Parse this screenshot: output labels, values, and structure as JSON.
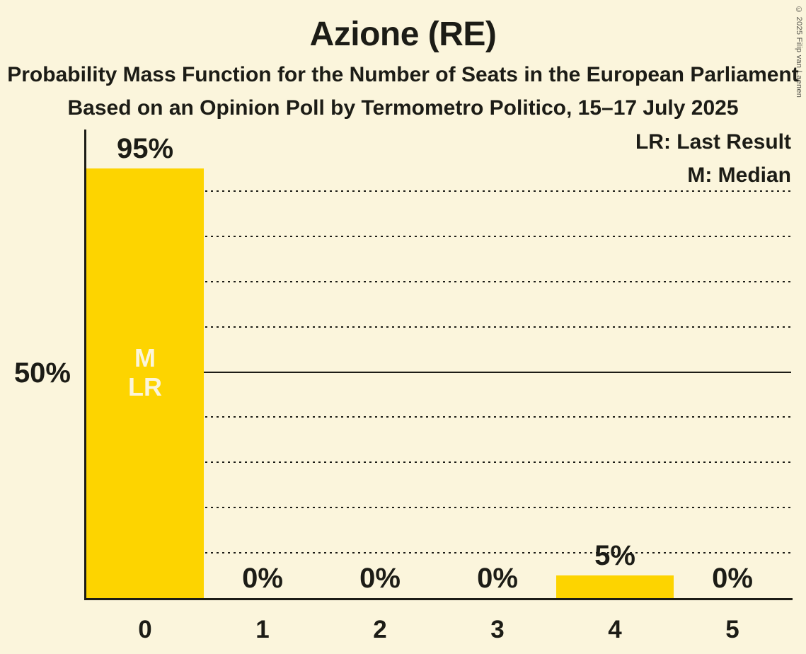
{
  "title": "Azione (RE)",
  "subtitles": [
    "Probability Mass Function for the Number of Seats in the European Parliament",
    "Based on an Opinion Poll by Termometro Politico, 15–17 July 2025"
  ],
  "copyright": "© 2025 Filip van Laenen",
  "legend": {
    "lr": "LR: Last Result",
    "m": "M: Median"
  },
  "colors": {
    "background": "#FBF5DC",
    "bar": "#FDD400",
    "text": "#1C1C16",
    "bar_annotation_text": "#FBF5DC"
  },
  "chart_data": {
    "type": "bar",
    "title": "Azione (RE)",
    "categories": [
      "0",
      "1",
      "2",
      "3",
      "4",
      "5"
    ],
    "values": [
      95,
      0,
      0,
      0,
      5,
      0
    ],
    "value_labels": [
      "95%",
      "0%",
      "0%",
      "0%",
      "5%",
      "0%"
    ],
    "xlabel": "",
    "ylabel": "",
    "ylim": [
      0,
      100
    ],
    "y_tick_labels": [
      {
        "pct": 50,
        "label": "50%"
      }
    ],
    "y_gridlines_pct": [
      10,
      20,
      30,
      40,
      50,
      60,
      70,
      80,
      90
    ],
    "solid_gridline_pct": 50,
    "grid": true,
    "legend_position": "top-right",
    "bar_annotations": [
      {
        "category_index": 0,
        "lines": [
          "M",
          "LR"
        ]
      }
    ]
  }
}
